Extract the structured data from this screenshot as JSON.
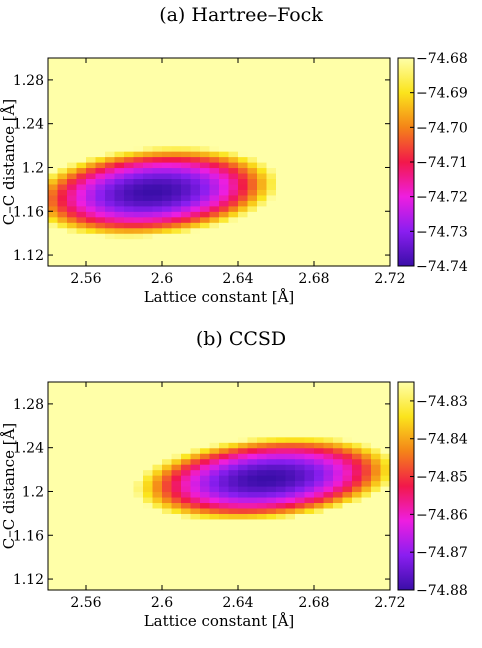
{
  "chart_data": [
    {
      "type": "heatmap",
      "panel_title": "(a) Hartree–Fock",
      "xlabel": "Lattice constant [Å]",
      "ylabel": "C–C distance [Å]",
      "xlim": [
        2.54,
        2.72
      ],
      "ylim": [
        1.11,
        1.3
      ],
      "x_ticks": [
        "2.56",
        "2.6",
        "2.64",
        "2.68",
        "2.72"
      ],
      "x_tick_values": [
        2.56,
        2.6,
        2.64,
        2.68,
        2.72
      ],
      "y_ticks": [
        "1.12",
        "1.16",
        "1.2",
        "1.24",
        "1.28"
      ],
      "y_tick_values": [
        1.12,
        1.16,
        1.2,
        1.24,
        1.28
      ],
      "colorbar_range": [
        -74.74,
        -74.68
      ],
      "colorbar_ticks": [
        "-74.68",
        "-74.69",
        "-74.70",
        "-74.71",
        "-74.72",
        "-74.73",
        "-74.74"
      ],
      "colorbar_tick_values": [
        -74.68,
        -74.69,
        -74.7,
        -74.71,
        -74.72,
        -74.73,
        -74.74
      ],
      "surface": {
        "min_x": 2.595,
        "min_y": 1.178,
        "min_value": -74.74,
        "curv_x": 1.4,
        "curv_y": 36,
        "coupling": -9
      },
      "grid_nx": 36,
      "grid_ny": 38,
      "colormap": [
        "#3a0ea8",
        "#8a1ef0",
        "#ee1ee0",
        "#f2184a",
        "#f48418",
        "#fbe41c",
        "#ffffa8"
      ]
    },
    {
      "type": "heatmap",
      "panel_title": "(b) CCSD",
      "xlabel": "Lattice constant [Å]",
      "ylabel": "C–C distance [Å]",
      "xlim": [
        2.54,
        2.72
      ],
      "ylim": [
        1.11,
        1.3
      ],
      "x_ticks": [
        "2.56",
        "2.6",
        "2.64",
        "2.68",
        "2.72"
      ],
      "x_tick_values": [
        2.56,
        2.6,
        2.64,
        2.68,
        2.72
      ],
      "y_ticks": [
        "1.12",
        "1.16",
        "1.2",
        "1.24",
        "1.28"
      ],
      "y_tick_values": [
        1.12,
        1.16,
        1.2,
        1.24,
        1.28
      ],
      "colorbar_range": [
        -74.88,
        -74.825
      ],
      "colorbar_ticks": [
        "-74.83",
        "-74.84",
        "-74.85",
        "-74.86",
        "-74.87",
        "-74.88"
      ],
      "colorbar_tick_values": [
        -74.83,
        -74.84,
        -74.85,
        -74.86,
        -74.87,
        -74.88
      ],
      "surface": {
        "min_x": 2.655,
        "min_y": 1.212,
        "min_value": -74.88,
        "curv_x": 1.2,
        "curv_y": 38,
        "coupling": -10
      },
      "grid_nx": 36,
      "grid_ny": 38,
      "colormap": [
        "#3a0ea8",
        "#8a1ef0",
        "#ee1ee0",
        "#f2184a",
        "#f48418",
        "#fbe41c",
        "#ffffa8"
      ]
    }
  ]
}
